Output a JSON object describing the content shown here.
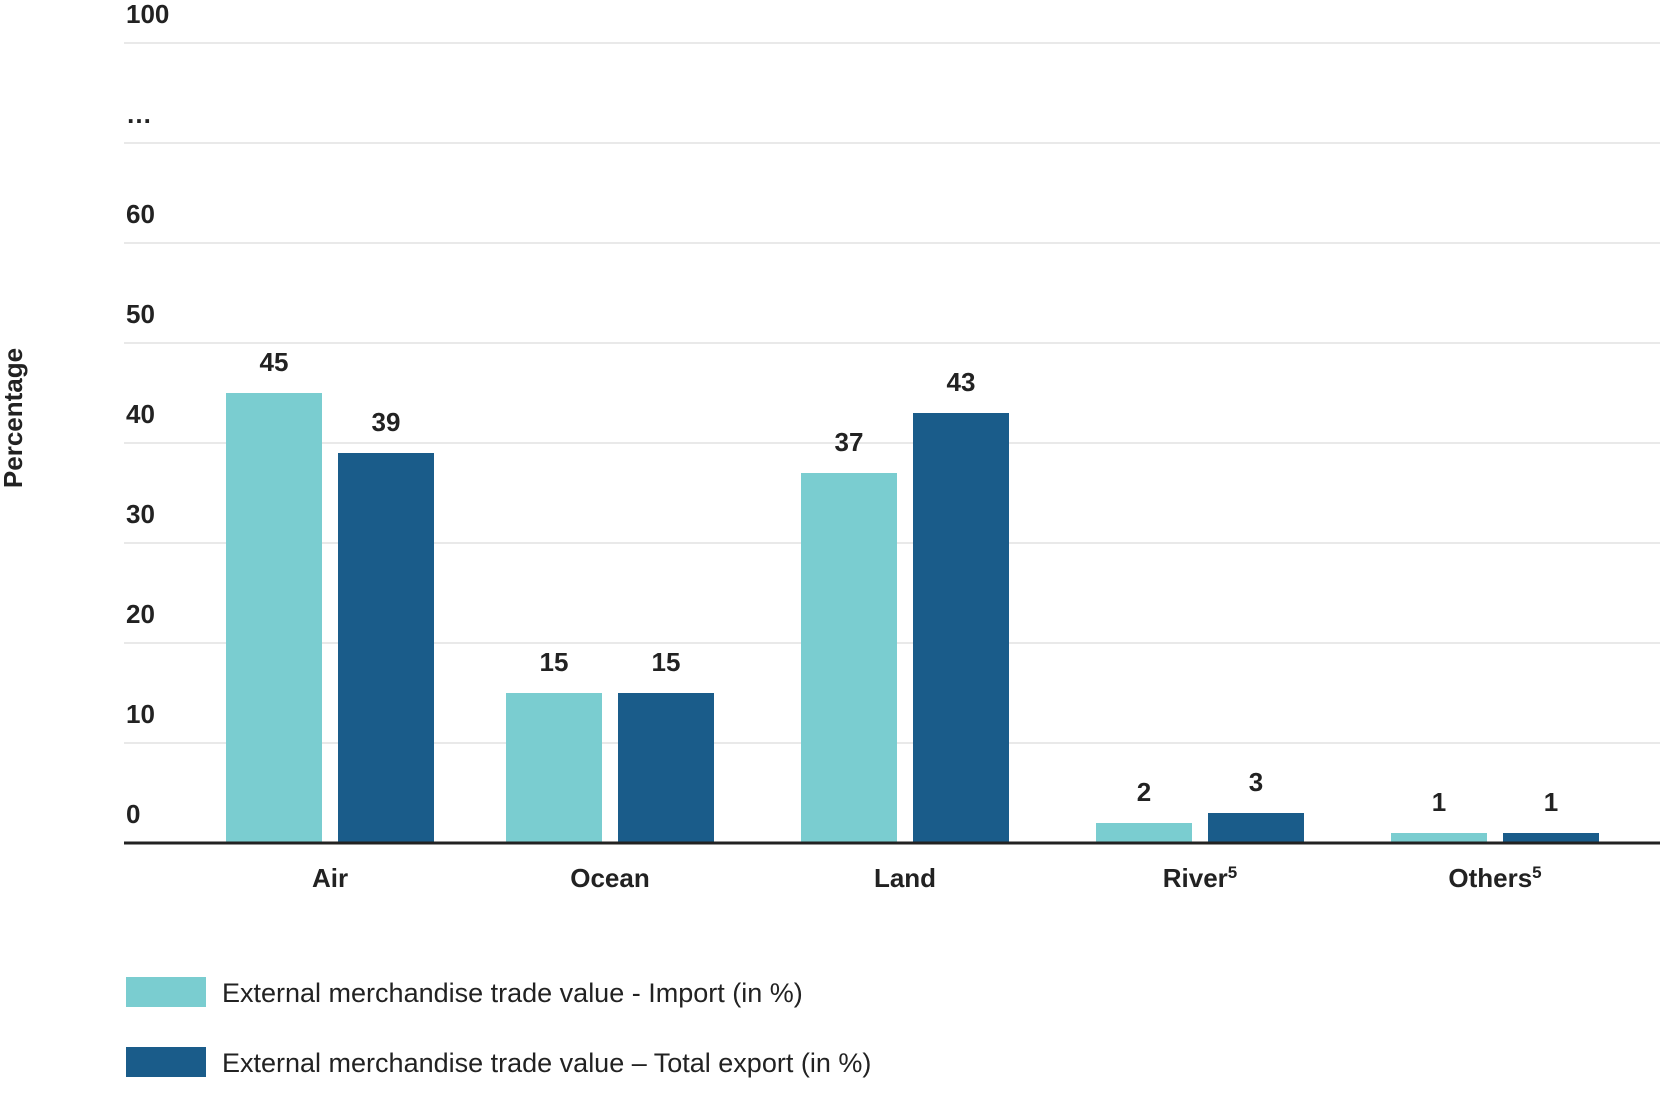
{
  "chart_data": {
    "type": "bar",
    "ylabel": "Percentage",
    "xlabel": "",
    "y_ticks": [
      "0",
      "10",
      "20",
      "30",
      "40",
      "50",
      "60",
      "…",
      "100"
    ],
    "categories": [
      {
        "label": "Air",
        "sup": ""
      },
      {
        "label": "Ocean",
        "sup": ""
      },
      {
        "label": "Land",
        "sup": ""
      },
      {
        "label": "River",
        "sup": "5"
      },
      {
        "label": "Others",
        "sup": "5"
      }
    ],
    "series": [
      {
        "name": "External merchandise trade value - Import (in %)",
        "color": "#7acdd0",
        "values": [
          45,
          15,
          37,
          2,
          1
        ]
      },
      {
        "name": "External merchandise trade value – Total export (in %)",
        "color": "#1a5c8a",
        "values": [
          39,
          15,
          43,
          3,
          1
        ]
      }
    ],
    "grid": true,
    "legend_position": "bottom-left",
    "axis_break": true
  }
}
